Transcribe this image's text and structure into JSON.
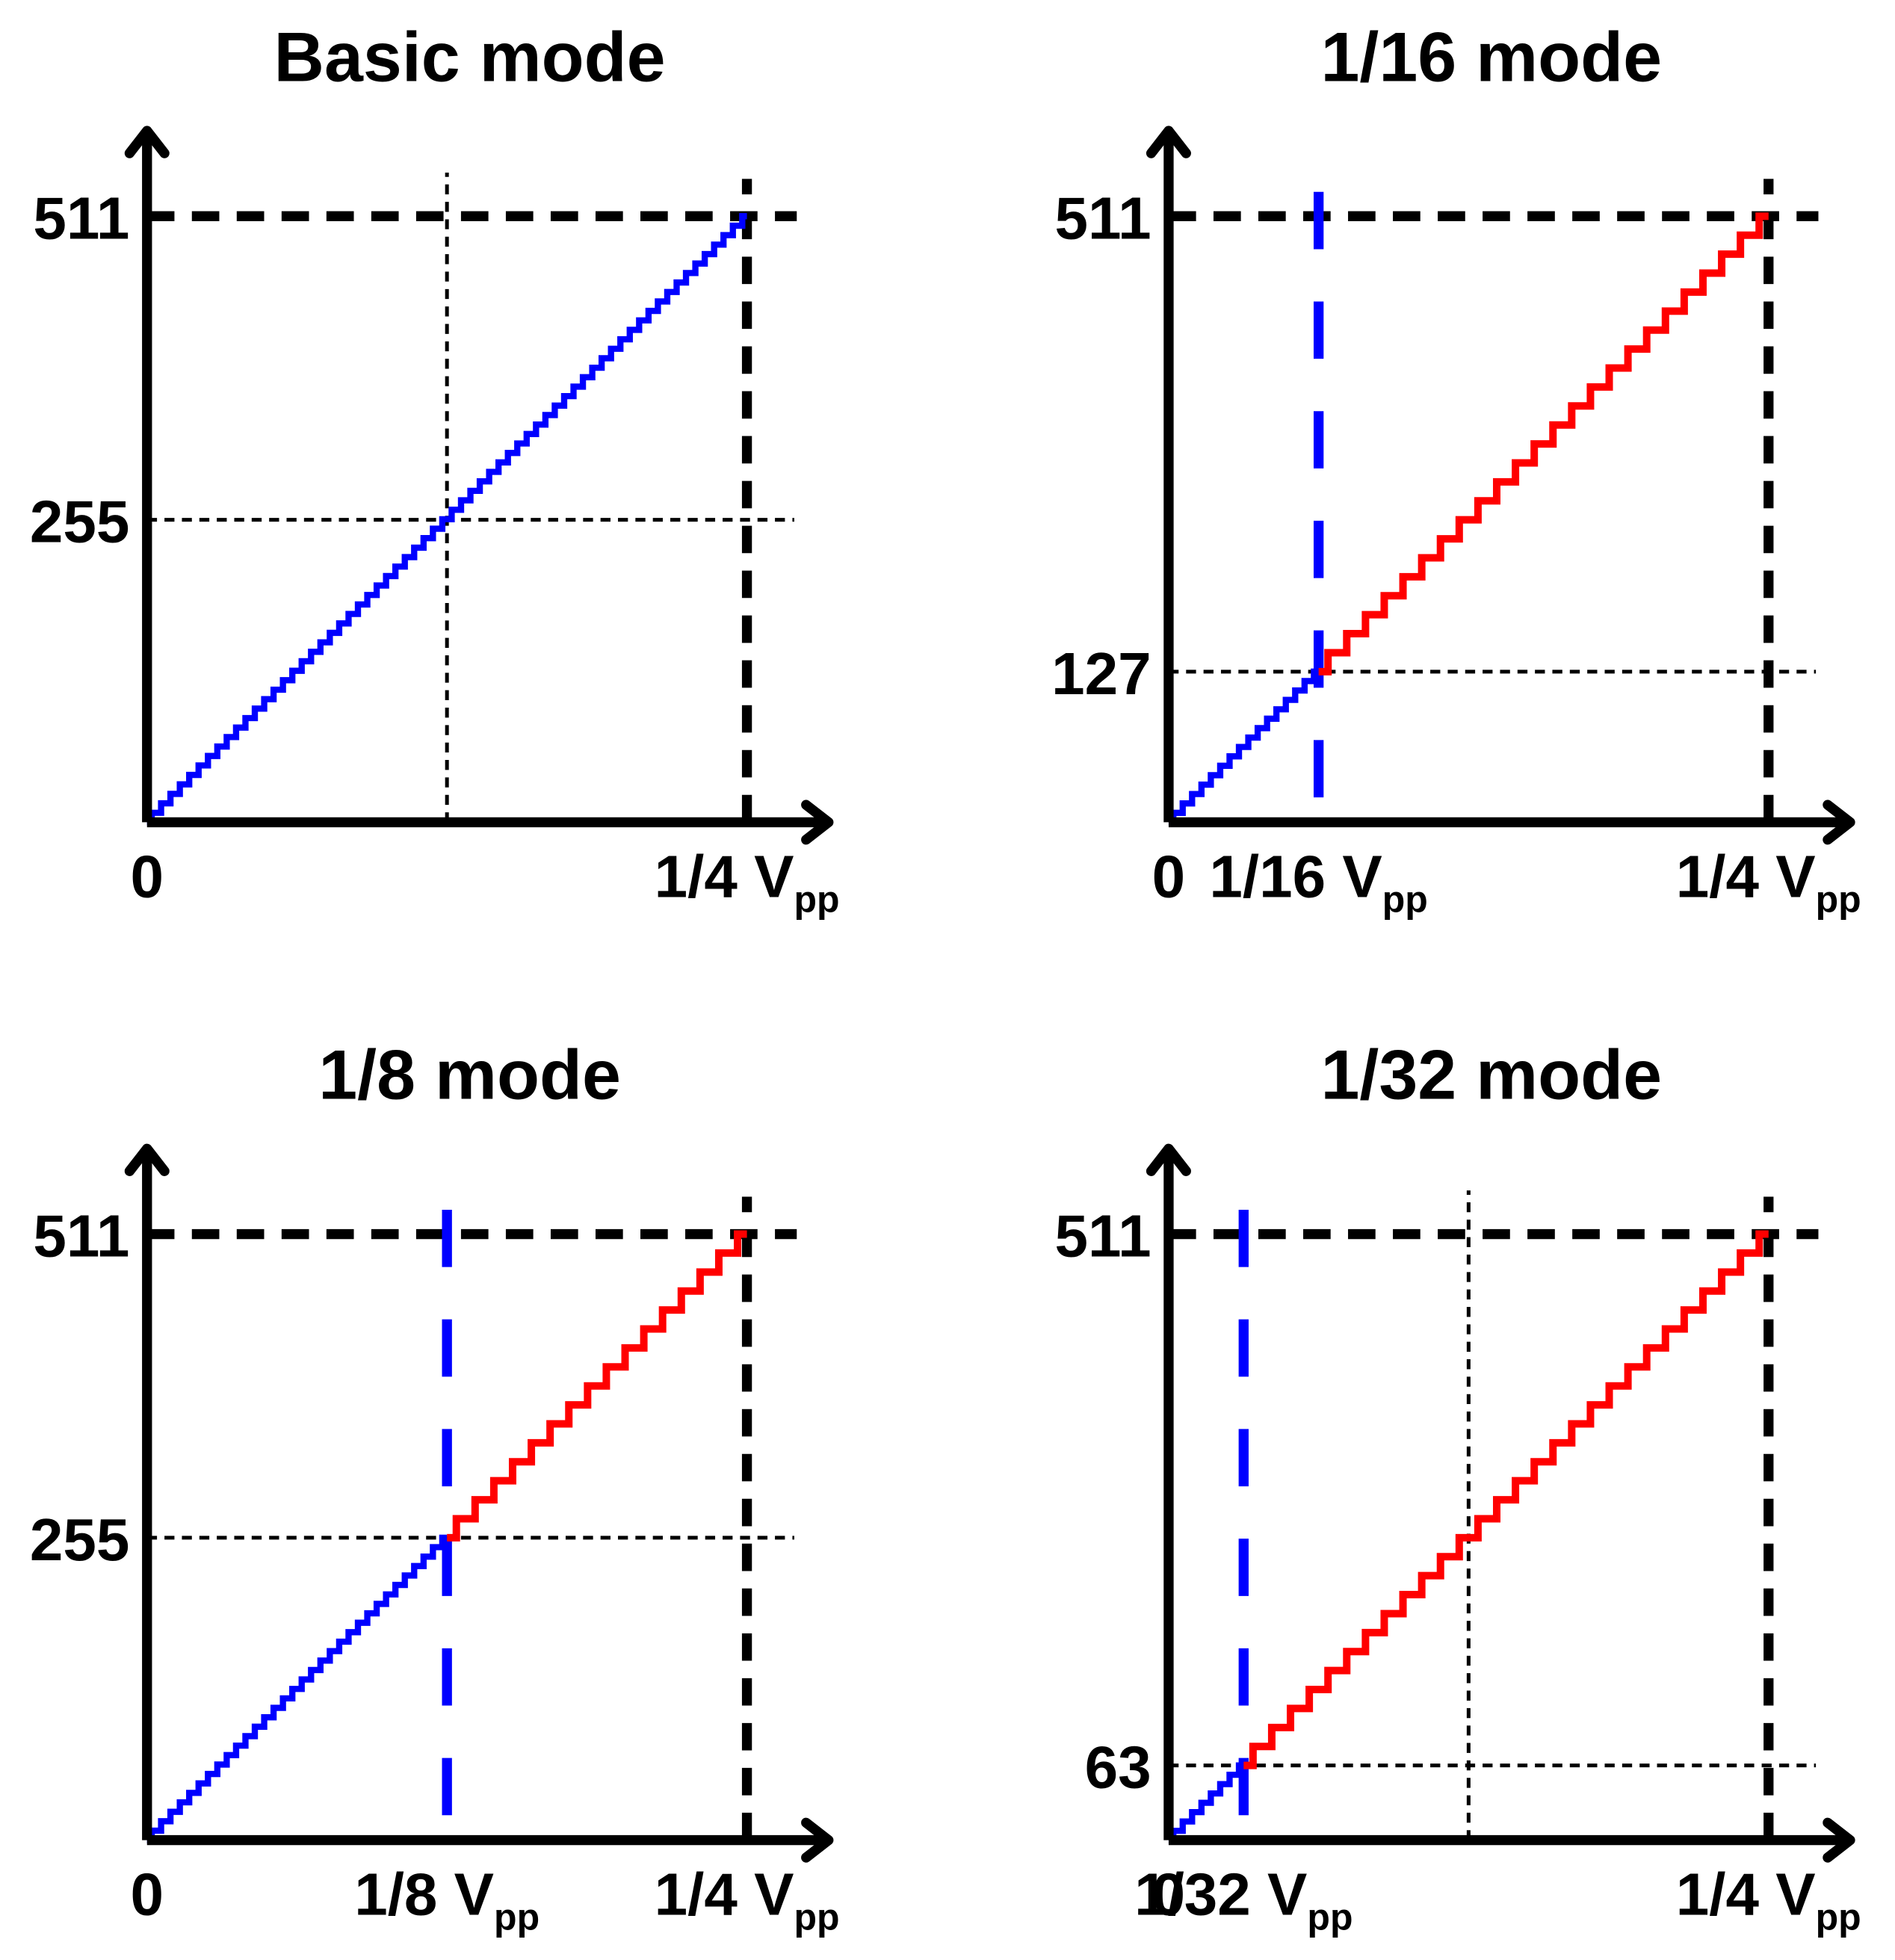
{
  "chart_data": [
    {
      "type": "line",
      "title": "Basic mode",
      "xlim": [
        0,
        0.284
      ],
      "ylim": [
        0,
        583
      ],
      "xticks": [
        {
          "value": 0,
          "label": "0"
        },
        {
          "value": 0.25,
          "label": "1/4 V",
          "sub": "pp"
        }
      ],
      "yticks": [
        255,
        511
      ],
      "guides_x": [
        0.125
      ],
      "series": [
        {
          "color": "#0000ff",
          "x": [
            0,
            0.25
          ],
          "values": [
            0,
            511
          ]
        }
      ]
    },
    {
      "type": "line",
      "title": "1/16 mode",
      "xlim": [
        0,
        0.284
      ],
      "ylim": [
        0,
        583
      ],
      "xticks": [
        {
          "value": 0,
          "label": "0"
        },
        {
          "value": 0.0625,
          "label": "1/16 V",
          "sub": "pp"
        },
        {
          "value": 0.25,
          "label": "1/4 V",
          "sub": "pp"
        }
      ],
      "yticks": [
        127,
        511
      ],
      "guides_x": [],
      "series": [
        {
          "color": "#0000ff",
          "x": [
            0,
            0.0625
          ],
          "values": [
            0,
            127
          ]
        },
        {
          "color": "#ff0000",
          "x": [
            0.0625,
            0.25
          ],
          "values": [
            127,
            511
          ]
        }
      ]
    },
    {
      "type": "line",
      "title": "1/8 mode",
      "xlim": [
        0,
        0.284
      ],
      "ylim": [
        0,
        583
      ],
      "xticks": [
        {
          "value": 0,
          "label": "0"
        },
        {
          "value": 0.125,
          "label": "1/8 V",
          "sub": "pp"
        },
        {
          "value": 0.25,
          "label": "1/4 V",
          "sub": "pp"
        }
      ],
      "yticks": [
        255,
        511
      ],
      "guides_x": [],
      "series": [
        {
          "color": "#0000ff",
          "x": [
            0,
            0.125
          ],
          "values": [
            0,
            255
          ]
        },
        {
          "color": "#ff0000",
          "x": [
            0.125,
            0.25
          ],
          "values": [
            255,
            511
          ]
        }
      ]
    },
    {
      "type": "line",
      "title": "1/32 mode",
      "xlim": [
        0,
        0.284
      ],
      "ylim": [
        0,
        583
      ],
      "xticks": [
        {
          "value": 0,
          "label": "0"
        },
        {
          "value": 0.03125,
          "label": "1/32 V",
          "sub": "pp"
        },
        {
          "value": 0.25,
          "label": "1/4 V",
          "sub": "pp"
        }
      ],
      "yticks": [
        63,
        511
      ],
      "guides_x": [
        0.125
      ],
      "series": [
        {
          "color": "#0000ff",
          "x": [
            0,
            0.03125
          ],
          "values": [
            0,
            63
          ]
        },
        {
          "color": "#ff0000",
          "x": [
            0.03125,
            0.25
          ],
          "values": [
            63,
            511
          ]
        }
      ]
    }
  ]
}
